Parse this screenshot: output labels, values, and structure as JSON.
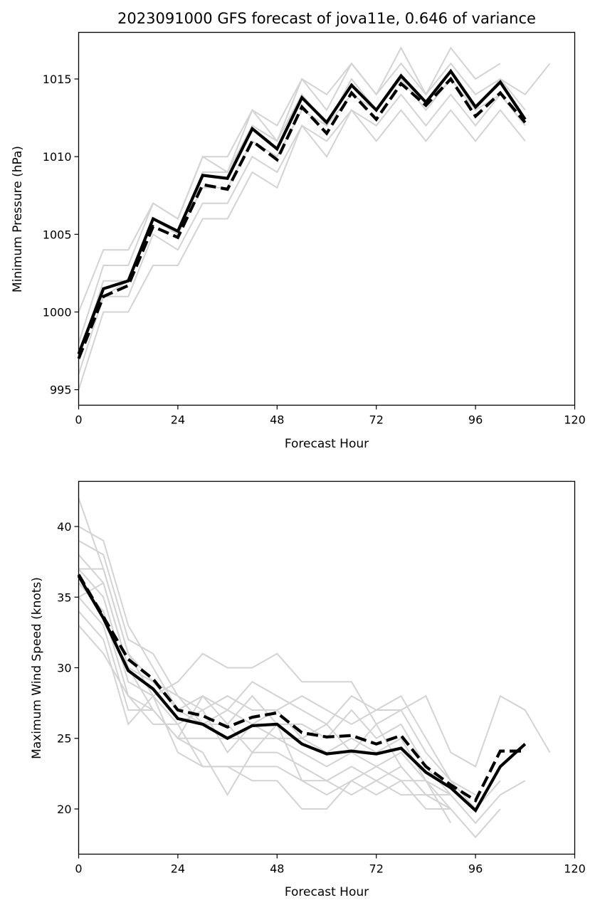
{
  "chart_data": [
    {
      "type": "line",
      "title": "2023091000 GFS forecast of jova11e, 0.646 of variance",
      "xlabel": "Forecast Hour",
      "ylabel": "Minimum Pressure (hPa)",
      "xlim": [
        0,
        120
      ],
      "ylim": [
        994,
        1018
      ],
      "xticks": [
        0,
        24,
        48,
        72,
        96,
        120
      ],
      "yticks": [
        995,
        1000,
        1005,
        1010,
        1015
      ],
      "grid": false,
      "legend": "none",
      "x": [
        0,
        6,
        12,
        18,
        24,
        30,
        36,
        42,
        48,
        54,
        60,
        66,
        72,
        78,
        84,
        90,
        96,
        102,
        108,
        114
      ],
      "series": [
        {
          "style": "solid",
          "color": "#000000",
          "values": [
            997.3,
            1001.5,
            1002.0,
            1006.0,
            1005.2,
            1008.8,
            1008.6,
            1011.8,
            1010.5,
            1013.8,
            1012.2,
            1014.6,
            1013.0,
            1015.2,
            1013.5,
            1015.5,
            1013.2,
            1014.8,
            1012.4,
            null
          ]
        },
        {
          "style": "dashed",
          "color": "#000000",
          "values": [
            997.0,
            1001.0,
            1001.7,
            1005.5,
            1004.8,
            1008.2,
            1007.9,
            1011.0,
            1009.8,
            1013.2,
            1011.5,
            1014.1,
            1012.4,
            1014.7,
            1013.3,
            1015.0,
            1012.6,
            1014.1,
            1012.2,
            null
          ]
        },
        {
          "style": "ensemble",
          "color": "#d3d3d3",
          "values": [
            1000.0,
            1004.0,
            1004.0,
            1007.0,
            1006.0,
            1010.0,
            1010.0,
            1013.0,
            1012.0,
            1015.0,
            1014.0,
            1016.0,
            1014.0,
            1017.0,
            1014.0,
            1017.0,
            1015.0,
            1016.0,
            null,
            null
          ]
        },
        {
          "style": "ensemble",
          "color": "#d3d3d3",
          "values": [
            998.0,
            1003.0,
            1003.0,
            1007.0,
            1006.0,
            1010.0,
            1009.0,
            1013.0,
            1011.0,
            1015.0,
            1013.0,
            1016.0,
            1014.0,
            1016.0,
            1014.0,
            1016.0,
            1014.0,
            1015.0,
            1014.0,
            1016.0
          ]
        },
        {
          "style": "ensemble",
          "color": "#d3d3d3",
          "values": [
            997.0,
            1002.0,
            1002.0,
            1006.0,
            1005.0,
            1009.0,
            1009.0,
            1012.0,
            1011.0,
            1014.0,
            1012.0,
            1015.0,
            1013.0,
            1015.0,
            1013.0,
            1015.0,
            1013.0,
            1015.0,
            1013.0,
            null
          ]
        },
        {
          "style": "ensemble",
          "color": "#d3d3d3",
          "values": [
            996.0,
            1001.0,
            1001.0,
            1005.0,
            1004.0,
            1007.0,
            1007.0,
            1010.0,
            1009.0,
            1012.0,
            1011.0,
            1013.0,
            1012.0,
            1014.0,
            1012.0,
            1014.0,
            1012.0,
            1014.0,
            1012.0,
            null
          ]
        },
        {
          "style": "ensemble",
          "color": "#d3d3d3",
          "values": [
            995.0,
            1000.0,
            1000.0,
            1003.0,
            1003.0,
            1006.0,
            1006.0,
            1009.0,
            1008.0,
            1012.0,
            1010.0,
            1013.0,
            1011.0,
            1013.0,
            1011.0,
            1013.0,
            1011.0,
            1013.0,
            1011.0,
            null
          ]
        },
        {
          "style": "ensemble",
          "color": "#d3d3d3",
          "values": [
            997.5,
            1001.0,
            1002.0,
            1006.0,
            1005.0,
            1008.0,
            1008.0,
            1011.0,
            1010.0,
            1013.0,
            1012.0,
            1014.0,
            1013.0,
            1015.0,
            1013.0,
            1015.0,
            1013.0,
            1014.0,
            1012.0,
            null
          ]
        }
      ]
    },
    {
      "type": "line",
      "title": "",
      "xlabel": "Forecast Hour",
      "ylabel": "Maximum Wind Speed (knots)",
      "xlim": [
        0,
        120
      ],
      "ylim": [
        16.8,
        43.2
      ],
      "xticks": [
        0,
        24,
        48,
        72,
        96,
        120
      ],
      "yticks": [
        20,
        25,
        30,
        35,
        40
      ],
      "grid": false,
      "legend": "none",
      "x": [
        0,
        6,
        12,
        18,
        24,
        30,
        36,
        42,
        48,
        54,
        60,
        66,
        72,
        78,
        84,
        90,
        96,
        102,
        108,
        114
      ],
      "series": [
        {
          "style": "solid",
          "color": "#000000",
          "values": [
            36.5,
            33.5,
            29.8,
            28.5,
            26.4,
            26.0,
            25.0,
            25.9,
            26.0,
            24.6,
            23.9,
            24.1,
            23.9,
            24.3,
            22.6,
            21.5,
            19.9,
            23.0,
            24.6,
            null
          ]
        },
        {
          "style": "dashed",
          "color": "#000000",
          "values": [
            36.6,
            33.6,
            30.6,
            29.2,
            27.0,
            26.6,
            25.8,
            26.5,
            26.8,
            25.4,
            25.1,
            25.2,
            24.6,
            25.2,
            23.0,
            21.7,
            20.6,
            24.1,
            24.1,
            null
          ]
        },
        {
          "style": "ensemble",
          "color": "#d3d3d3",
          "values": [
            42.0,
            37.0,
            31.0,
            28.0,
            29.0,
            31.0,
            30.0,
            30.0,
            31.0,
            29.0,
            29.0,
            29.0,
            26.0,
            27.0,
            28.0,
            24.0,
            23.0,
            28.0,
            27.0,
            24.0
          ]
        },
        {
          "style": "ensemble",
          "color": "#d3d3d3",
          "values": [
            40.0,
            39.0,
            33.0,
            30.0,
            27.0,
            28.0,
            27.0,
            29.0,
            28.0,
            27.0,
            26.0,
            28.0,
            27.0,
            28.0,
            25.0,
            22.0,
            21.0,
            null,
            null,
            null
          ]
        },
        {
          "style": "ensemble",
          "color": "#d3d3d3",
          "values": [
            39.0,
            38.0,
            32.0,
            31.0,
            28.0,
            27.0,
            28.0,
            27.0,
            27.0,
            28.0,
            27.0,
            26.0,
            27.0,
            27.0,
            24.0,
            22.0,
            20.0,
            22.0,
            null,
            null
          ]
        },
        {
          "style": "ensemble",
          "color": "#d3d3d3",
          "values": [
            38.0,
            36.0,
            30.0,
            29.0,
            27.0,
            26.0,
            26.0,
            28.0,
            26.0,
            26.0,
            25.0,
            27.0,
            25.0,
            26.0,
            23.0,
            21.0,
            19.0,
            21.0,
            22.0,
            null
          ]
        },
        {
          "style": "ensemble",
          "color": "#d3d3d3",
          "values": [
            37.0,
            35.0,
            29.0,
            28.0,
            26.0,
            27.0,
            24.0,
            26.0,
            27.0,
            25.0,
            24.0,
            25.0,
            24.0,
            25.0,
            22.0,
            21.0,
            null,
            null,
            null,
            null
          ]
        },
        {
          "style": "ensemble",
          "color": "#d3d3d3",
          "values": [
            36.0,
            34.0,
            28.0,
            27.0,
            25.0,
            25.0,
            25.0,
            25.0,
            25.0,
            24.0,
            23.0,
            24.0,
            23.0,
            24.0,
            22.0,
            20.0,
            null,
            null,
            null,
            null
          ]
        },
        {
          "style": "ensemble",
          "color": "#d3d3d3",
          "values": [
            35.0,
            33.0,
            27.0,
            27.0,
            25.0,
            24.0,
            21.0,
            24.0,
            24.0,
            23.0,
            22.0,
            23.0,
            22.0,
            23.0,
            21.0,
            20.0,
            null,
            null,
            null,
            null
          ]
        },
        {
          "style": "ensemble",
          "color": "#d3d3d3",
          "values": [
            34.0,
            32.0,
            26.0,
            28.0,
            24.0,
            23.0,
            23.0,
            23.0,
            23.0,
            22.0,
            21.0,
            22.0,
            23.0,
            22.0,
            22.0,
            19.0,
            null,
            null,
            null,
            null
          ]
        },
        {
          "style": "ensemble",
          "color": "#d3d3d3",
          "values": [
            33.0,
            31.0,
            28.0,
            26.0,
            26.0,
            23.0,
            23.0,
            22.0,
            22.0,
            20.0,
            20.0,
            22.0,
            21.0,
            22.0,
            20.0,
            20.0,
            18.0,
            20.0,
            null,
            null
          ]
        },
        {
          "style": "ensemble",
          "color": "#d3d3d3",
          "values": [
            37.0,
            37.0,
            31.0,
            29.0,
            28.0,
            26.0,
            27.0,
            26.0,
            25.0,
            25.0,
            26.0,
            24.0,
            26.0,
            23.0,
            21.0,
            21.0,
            null,
            null,
            null,
            null
          ]
        },
        {
          "style": "ensemble",
          "color": "#d3d3d3",
          "values": [
            35.0,
            36.0,
            30.0,
            27.0,
            25.0,
            28.0,
            26.0,
            24.0,
            26.0,
            22.0,
            22.0,
            21.0,
            22.0,
            21.0,
            21.0,
            20.0,
            null,
            null,
            null,
            null
          ]
        }
      ]
    }
  ]
}
